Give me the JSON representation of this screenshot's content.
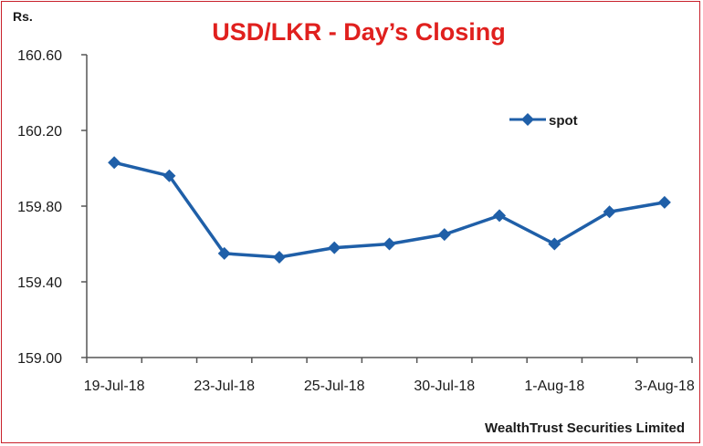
{
  "chart_data": {
    "type": "line",
    "title": "USD/LKR - Day’s Closing",
    "ylabel": "Rs.",
    "footer": "WealthTrust Securities Limited",
    "ylim": [
      159.0,
      160.6
    ],
    "yticks": [
      "160.60",
      "160.20",
      "159.80",
      "159.40",
      "159.00"
    ],
    "ytick_values": [
      160.6,
      160.2,
      159.8,
      159.4,
      159.0
    ],
    "xtick_labels": [
      "19-Jul-18",
      "23-Jul-18",
      "25-Jul-18",
      "30-Jul-18",
      "1-Aug-18",
      "3-Aug-18"
    ],
    "xtick_indices": [
      0,
      2,
      4,
      6,
      8,
      10
    ],
    "legend_position": "top-right",
    "colors": {
      "series": "#1f5fa8",
      "title": "#e0201e",
      "border": "#c8202a"
    },
    "series": [
      {
        "name": "spot",
        "values": [
          160.03,
          159.96,
          159.55,
          159.53,
          159.58,
          159.6,
          159.65,
          159.75,
          159.6,
          159.77,
          159.82
        ]
      }
    ]
  }
}
